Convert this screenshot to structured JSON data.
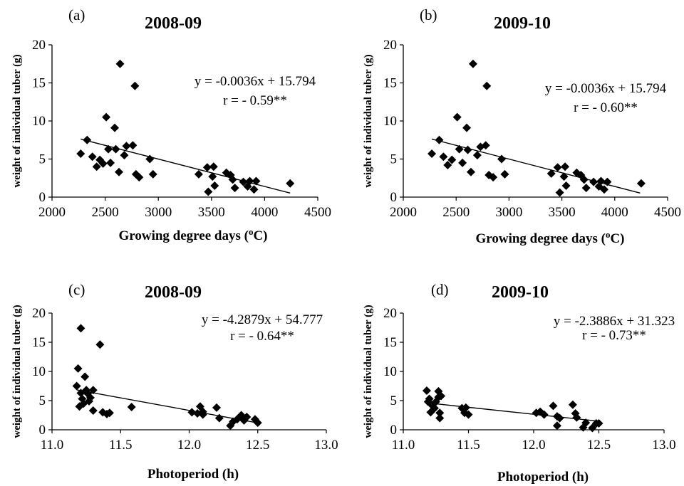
{
  "chart_data": [
    {
      "type": "scatter",
      "panel": "(a)",
      "title": "2008-09",
      "xlabel": "Growing degree days (",
      "xlabel_sup": "o",
      "xlabel_tail": "C)",
      "ylabel": "weight of individual tuber (g)",
      "xlim": [
        2000,
        4500
      ],
      "ylim": [
        0,
        20
      ],
      "xticks": [
        2000,
        2500,
        3000,
        3500,
        4000,
        4500
      ],
      "yticks": [
        0,
        5,
        10,
        15,
        20
      ],
      "equation": "y = -0.0036x + 15.794",
      "r_text": "r = - 0.59**",
      "trendline": {
        "slope": -0.0036,
        "intercept": 15.794,
        "x_from": 2270,
        "x_to": 4240
      },
      "points": [
        [
          2270,
          5.7
        ],
        [
          2330,
          7.5
        ],
        [
          2380,
          5.3
        ],
        [
          2420,
          4.0
        ],
        [
          2450,
          4.9
        ],
        [
          2480,
          4.4
        ],
        [
          2510,
          10.5
        ],
        [
          2530,
          6.3
        ],
        [
          2550,
          4.5
        ],
        [
          2590,
          9.1
        ],
        [
          2600,
          6.3
        ],
        [
          2630,
          3.3
        ],
        [
          2640,
          17.5
        ],
        [
          2680,
          5.5
        ],
        [
          2700,
          6.7
        ],
        [
          2760,
          6.8
        ],
        [
          2780,
          14.6
        ],
        [
          2790,
          3.0
        ],
        [
          2820,
          2.6
        ],
        [
          2920,
          5.0
        ],
        [
          2950,
          3.0
        ],
        [
          3380,
          3.0
        ],
        [
          3460,
          3.9
        ],
        [
          3470,
          0.7
        ],
        [
          3510,
          2.7
        ],
        [
          3520,
          4.0
        ],
        [
          3530,
          1.5
        ],
        [
          3640,
          3.2
        ],
        [
          3680,
          2.9
        ],
        [
          3700,
          2.3
        ],
        [
          3720,
          1.2
        ],
        [
          3800,
          2.0
        ],
        [
          3840,
          1.4
        ],
        [
          3860,
          2.1
        ],
        [
          3900,
          1.0
        ],
        [
          3920,
          2.1
        ],
        [
          4240,
          1.8
        ]
      ]
    },
    {
      "type": "scatter",
      "panel": "(b)",
      "title": "2009-10",
      "xlabel": "Growing degree days (",
      "xlabel_sup": "o",
      "xlabel_tail": "C)",
      "ylabel": "weight of individual tuber (g)",
      "xlim": [
        2000,
        4500
      ],
      "ylim": [
        0,
        20
      ],
      "xticks": [
        2000,
        2500,
        3000,
        3500,
        4000,
        4500
      ],
      "yticks": [
        0,
        5,
        10,
        15,
        20
      ],
      "equation": "y = -0.0036x + 15.794",
      "r_text": "r = - 0.60**",
      "trendline": {
        "slope": -0.0036,
        "intercept": 15.794,
        "x_from": 2270,
        "x_to": 4240
      },
      "points": [
        [
          2270,
          5.7
        ],
        [
          2340,
          7.5
        ],
        [
          2380,
          5.3
        ],
        [
          2420,
          4.2
        ],
        [
          2460,
          4.9
        ],
        [
          2510,
          10.5
        ],
        [
          2530,
          6.3
        ],
        [
          2560,
          4.5
        ],
        [
          2600,
          9.1
        ],
        [
          2610,
          6.2
        ],
        [
          2640,
          3.3
        ],
        [
          2660,
          17.5
        ],
        [
          2700,
          5.5
        ],
        [
          2730,
          6.6
        ],
        [
          2780,
          6.8
        ],
        [
          2790,
          14.6
        ],
        [
          2810,
          2.9
        ],
        [
          2850,
          2.6
        ],
        [
          2930,
          5.0
        ],
        [
          2960,
          3.0
        ],
        [
          3400,
          3.1
        ],
        [
          3460,
          3.9
        ],
        [
          3480,
          0.6
        ],
        [
          3520,
          2.7
        ],
        [
          3530,
          4.0
        ],
        [
          3540,
          1.5
        ],
        [
          3640,
          3.2
        ],
        [
          3680,
          2.9
        ],
        [
          3710,
          2.3
        ],
        [
          3730,
          1.2
        ],
        [
          3800,
          2.0
        ],
        [
          3850,
          1.4
        ],
        [
          3870,
          2.1
        ],
        [
          3900,
          1.0
        ],
        [
          3930,
          2.0
        ],
        [
          4250,
          1.8
        ]
      ]
    },
    {
      "type": "scatter",
      "panel": "(c)",
      "title": "2008-09",
      "xlabel": "Photoperiod (h)",
      "ylabel": "weight of individual tuber (g)",
      "xlim": [
        11.0,
        13.0
      ],
      "ylim": [
        0,
        20
      ],
      "xticks": [
        "11.0",
        "11.5",
        "12.0",
        "12.5",
        "13.0"
      ],
      "yticks": [
        0,
        5,
        10,
        15,
        20
      ],
      "equation": "y = -4.2879x + 54.777",
      "r_text": "r = - 0.64**",
      "trendline": {
        "slope": -4.2879,
        "intercept": 54.777,
        "x_from": 11.18,
        "x_to": 12.5
      },
      "points": [
        [
          11.18,
          7.5
        ],
        [
          11.19,
          10.5
        ],
        [
          11.2,
          4.0
        ],
        [
          11.21,
          6.3
        ],
        [
          11.21,
          17.4
        ],
        [
          11.22,
          5.3
        ],
        [
          11.23,
          4.5
        ],
        [
          11.24,
          9.1
        ],
        [
          11.25,
          6.8
        ],
        [
          11.26,
          6.2
        ],
        [
          11.27,
          4.9
        ],
        [
          11.28,
          5.5
        ],
        [
          11.3,
          6.8
        ],
        [
          11.3,
          3.3
        ],
        [
          11.35,
          14.6
        ],
        [
          11.37,
          3.0
        ],
        [
          11.4,
          2.7
        ],
        [
          11.42,
          2.9
        ],
        [
          11.58,
          3.9
        ],
        [
          12.02,
          3.0
        ],
        [
          12.06,
          2.8
        ],
        [
          12.08,
          4.0
        ],
        [
          12.1,
          2.6
        ],
        [
          12.1,
          3.1
        ],
        [
          12.2,
          3.8
        ],
        [
          12.22,
          2.0
        ],
        [
          12.3,
          0.7
        ],
        [
          12.32,
          1.4
        ],
        [
          12.35,
          1.8
        ],
        [
          12.38,
          2.5
        ],
        [
          12.4,
          1.6
        ],
        [
          12.42,
          2.2
        ],
        [
          12.48,
          1.8
        ],
        [
          12.5,
          1.2
        ]
      ]
    },
    {
      "type": "scatter",
      "panel": "(d)",
      "title": "2009-10",
      "xlabel": "Photoperiod (h)",
      "ylabel": "weight of individual tuber (g)",
      "xlim": [
        11.0,
        13.0
      ],
      "ylim": [
        0,
        20
      ],
      "xticks": [
        "11.0",
        "11.5",
        "12.0",
        "12.5",
        "13.0"
      ],
      "yticks": [
        0,
        5,
        10,
        15,
        20
      ],
      "equation": "y = -2.3886x + 31.323",
      "r_text": "r = - 0.73**",
      "trendline": {
        "slope": -2.3886,
        "intercept": 31.323,
        "x_from": 11.18,
        "x_to": 12.5
      },
      "points": [
        [
          11.18,
          6.7
        ],
        [
          11.19,
          4.8
        ],
        [
          11.2,
          5.3
        ],
        [
          11.21,
          3.0
        ],
        [
          11.22,
          4.2
        ],
        [
          11.24,
          3.7
        ],
        [
          11.25,
          4.8
        ],
        [
          11.27,
          6.6
        ],
        [
          11.27,
          5.6
        ],
        [
          11.28,
          2.9
        ],
        [
          11.29,
          5.8
        ],
        [
          11.28,
          2.0
        ],
        [
          11.45,
          3.7
        ],
        [
          11.47,
          2.9
        ],
        [
          11.48,
          3.8
        ],
        [
          11.5,
          2.6
        ],
        [
          12.02,
          2.9
        ],
        [
          12.05,
          3.1
        ],
        [
          12.08,
          2.6
        ],
        [
          12.15,
          4.1
        ],
        [
          12.18,
          2.3
        ],
        [
          12.18,
          0.7
        ],
        [
          12.2,
          2.0
        ],
        [
          12.3,
          4.3
        ],
        [
          12.32,
          2.8
        ],
        [
          12.33,
          2.1
        ],
        [
          12.38,
          0.4
        ],
        [
          12.4,
          1.2
        ],
        [
          12.45,
          0.3
        ],
        [
          12.48,
          1.1
        ],
        [
          12.5,
          1.1
        ]
      ]
    }
  ]
}
